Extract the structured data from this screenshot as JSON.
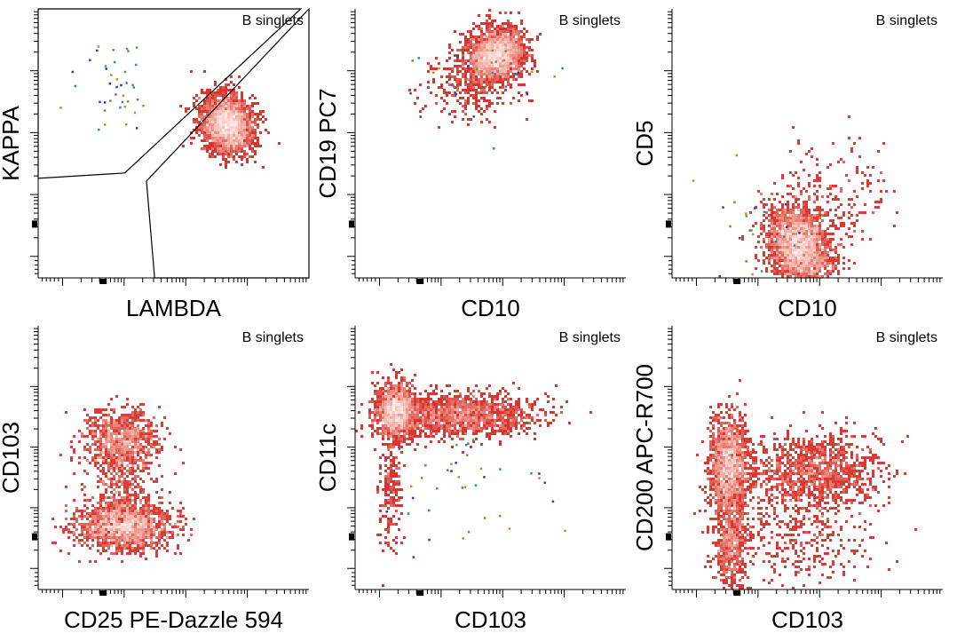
{
  "figure": {
    "gate_label": "B singlets",
    "colors": {
      "low": "#b01818",
      "mid": "#d93a32",
      "high": "#f4b2a8",
      "core": "#fff2ee",
      "axis": "#000000",
      "gate": "#000000"
    },
    "sparse_colors": [
      "#1f3fbf",
      "#c98a1a",
      "#5a9a3a",
      "#2a8ab0"
    ]
  },
  "chart_data": [
    {
      "type": "scatter",
      "title": "B singlets",
      "xlabel": "LAMBDA",
      "ylabel": "KAPPA",
      "xlim": [
        0,
        1
      ],
      "ylim": [
        0,
        1
      ],
      "populations": [
        {
          "name": "main",
          "cx": 0.7,
          "cy": 0.43,
          "sx": 0.045,
          "sy": 0.055,
          "n": 2600,
          "rot": -0.3
        },
        {
          "name": "sparse",
          "cx": 0.3,
          "cy": 0.3,
          "sx": 0.08,
          "sy": 0.08,
          "n": 40,
          "sparse": true
        }
      ],
      "gates": [
        {
          "name": "kappa-gate",
          "points": [
            [
              0.0,
              0.0
            ],
            [
              0.97,
              0.0
            ],
            [
              0.32,
              0.61
            ],
            [
              0.0,
              0.63
            ]
          ]
        },
        {
          "name": "lambda-gate",
          "points": [
            [
              1.0,
              0.0
            ],
            [
              1.0,
              1.0
            ],
            [
              0.43,
              1.0
            ],
            [
              0.4,
              0.64
            ]
          ]
        }
      ]
    },
    {
      "type": "scatter",
      "title": "B singlets",
      "xlabel": "CD10",
      "ylabel": "CD19 PC7",
      "xlim": [
        0,
        1
      ],
      "ylim": [
        0,
        1
      ],
      "populations": [
        {
          "name": "main",
          "cx": 0.52,
          "cy": 0.17,
          "sx": 0.055,
          "sy": 0.045,
          "n": 2400,
          "rot": -0.5
        },
        {
          "name": "tail",
          "cx": 0.42,
          "cy": 0.3,
          "sx": 0.08,
          "sy": 0.06,
          "n": 260
        },
        {
          "name": "sparse",
          "cx": 0.48,
          "cy": 0.28,
          "sx": 0.15,
          "sy": 0.08,
          "n": 30,
          "sparse": true
        }
      ]
    },
    {
      "type": "scatter",
      "title": "B singlets",
      "xlabel": "CD10",
      "ylabel": "CD5",
      "xlim": [
        0,
        1
      ],
      "ylim": [
        0,
        1
      ],
      "populations": [
        {
          "name": "main",
          "cx": 0.47,
          "cy": 0.88,
          "sx": 0.055,
          "sy": 0.075,
          "n": 2500,
          "rot": -0.45
        },
        {
          "name": "diag",
          "cx": 0.6,
          "cy": 0.7,
          "sx": 0.1,
          "sy": 0.1,
          "n": 180,
          "rot": -0.8
        },
        {
          "name": "sparse",
          "cx": 0.3,
          "cy": 0.78,
          "sx": 0.12,
          "sy": 0.1,
          "n": 25,
          "sparse": true
        }
      ]
    },
    {
      "type": "scatter",
      "title": "B singlets",
      "xlabel": "CD25 PE-Dazzle 594",
      "ylabel": "CD103",
      "xlim": [
        0,
        1
      ],
      "ylim": [
        0,
        1
      ],
      "populations": [
        {
          "name": "upper",
          "cx": 0.31,
          "cy": 0.43,
          "sx": 0.07,
          "sy": 0.055,
          "n": 900
        },
        {
          "name": "lower",
          "cx": 0.32,
          "cy": 0.76,
          "sx": 0.085,
          "sy": 0.045,
          "n": 1700
        },
        {
          "name": "bridge",
          "cx": 0.31,
          "cy": 0.6,
          "sx": 0.06,
          "sy": 0.09,
          "n": 400
        }
      ]
    },
    {
      "type": "scatter",
      "title": "B singlets",
      "xlabel": "CD103",
      "ylabel": "CD11c",
      "xlim": [
        0,
        1
      ],
      "ylim": [
        0,
        1
      ],
      "populations": [
        {
          "name": "main",
          "cx": 0.15,
          "cy": 0.32,
          "sx": 0.035,
          "sy": 0.05,
          "n": 1600
        },
        {
          "name": "band",
          "cx": 0.4,
          "cy": 0.34,
          "sx": 0.14,
          "sy": 0.04,
          "n": 1500
        },
        {
          "name": "tail",
          "cx": 0.13,
          "cy": 0.6,
          "sx": 0.02,
          "sy": 0.12,
          "n": 220
        },
        {
          "name": "sparse",
          "cx": 0.4,
          "cy": 0.6,
          "sx": 0.15,
          "sy": 0.12,
          "n": 40,
          "sparse": true
        }
      ]
    },
    {
      "type": "scatter",
      "title": "B singlets",
      "xlabel": "CD103",
      "ylabel": "CD200 APC-R700",
      "xlim": [
        0,
        1
      ],
      "ylim": [
        0,
        1
      ],
      "populations": [
        {
          "name": "main",
          "cx": 0.21,
          "cy": 0.53,
          "sx": 0.035,
          "sy": 0.09,
          "n": 1700
        },
        {
          "name": "right",
          "cx": 0.52,
          "cy": 0.55,
          "sx": 0.12,
          "sy": 0.07,
          "n": 1100
        },
        {
          "name": "lower",
          "cx": 0.22,
          "cy": 0.82,
          "sx": 0.03,
          "sy": 0.09,
          "n": 600
        },
        {
          "name": "scatter",
          "cx": 0.45,
          "cy": 0.75,
          "sx": 0.14,
          "sy": 0.12,
          "n": 450
        }
      ]
    }
  ]
}
